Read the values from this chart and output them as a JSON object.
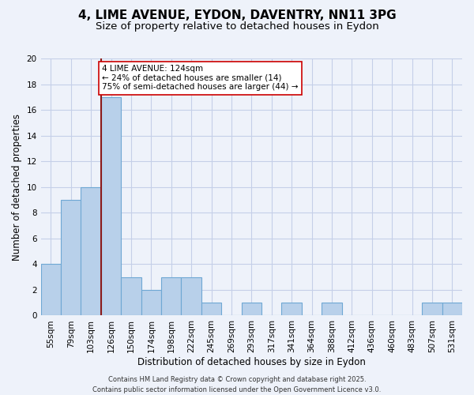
{
  "title": "4, LIME AVENUE, EYDON, DAVENTRY, NN11 3PG",
  "subtitle": "Size of property relative to detached houses in Eydon",
  "xlabel": "Distribution of detached houses by size in Eydon",
  "ylabel": "Number of detached properties",
  "footer_lines": [
    "Contains HM Land Registry data © Crown copyright and database right 2025.",
    "Contains public sector information licensed under the Open Government Licence v3.0."
  ],
  "bin_labels": [
    "55sqm",
    "79sqm",
    "103sqm",
    "126sqm",
    "150sqm",
    "174sqm",
    "198sqm",
    "222sqm",
    "245sqm",
    "269sqm",
    "293sqm",
    "317sqm",
    "341sqm",
    "364sqm",
    "388sqm",
    "412sqm",
    "436sqm",
    "460sqm",
    "483sqm",
    "507sqm",
    "531sqm"
  ],
  "bar_values": [
    4,
    9,
    10,
    17,
    3,
    2,
    3,
    3,
    1,
    0,
    1,
    0,
    1,
    0,
    1,
    0,
    0,
    0,
    0,
    1,
    1
  ],
  "bar_fill_color": "#b8d0ea",
  "bar_edge_color": "#6fa8d4",
  "highlight_line_color": "#8b1a1a",
  "highlight_bar_index": 3,
  "annotation_text_line1": "4 LIME AVENUE: 124sqm",
  "annotation_text_line2": "← 24% of detached houses are smaller (14)",
  "annotation_text_line3": "75% of semi-detached houses are larger (44) →",
  "ylim": [
    0,
    20
  ],
  "yticks": [
    0,
    2,
    4,
    6,
    8,
    10,
    12,
    14,
    16,
    18,
    20
  ],
  "background_color": "#eef2fa",
  "plot_bg_color": "#eef2fa",
  "grid_color": "#c5cfe8",
  "title_fontsize": 11,
  "subtitle_fontsize": 9.5,
  "axis_label_fontsize": 8.5,
  "tick_fontsize": 7.5,
  "annotation_fontsize": 7.5,
  "footer_fontsize": 6
}
